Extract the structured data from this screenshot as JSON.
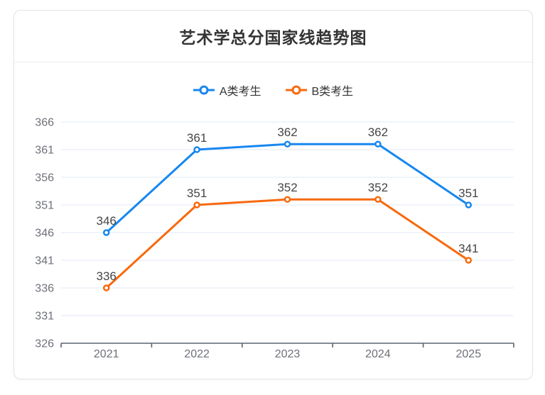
{
  "card": {
    "title": "艺术学总分国家线趋势图"
  },
  "chart_data": {
    "type": "line",
    "title": "艺术学总分国家线趋势图",
    "categories": [
      "2021",
      "2022",
      "2023",
      "2024",
      "2025"
    ],
    "series": [
      {
        "name": "A类考生",
        "color": "#1787f0",
        "values": [
          346,
          361,
          362,
          362,
          351
        ]
      },
      {
        "name": "B类考生",
        "color": "#f8690d",
        "values": [
          336,
          351,
          352,
          352,
          341
        ]
      }
    ],
    "ylim": [
      326,
      366
    ],
    "ytick_step": 5,
    "yticks": [
      326,
      331,
      336,
      341,
      346,
      351,
      356,
      361,
      366
    ],
    "grid": true,
    "legend_position": "top",
    "data_labels": true,
    "marker": "empty-circle"
  },
  "colors": {
    "series_a": "#1787f0",
    "series_b": "#f8690d",
    "grid_line": "#e2e8f3",
    "axis_line": "#5b6370",
    "axis_label": "#6e7079",
    "data_label": "#454545",
    "title_text": "#333333",
    "legend_text": "#333333",
    "card_border": "#e4e4e4",
    "divider": "#ededed"
  }
}
